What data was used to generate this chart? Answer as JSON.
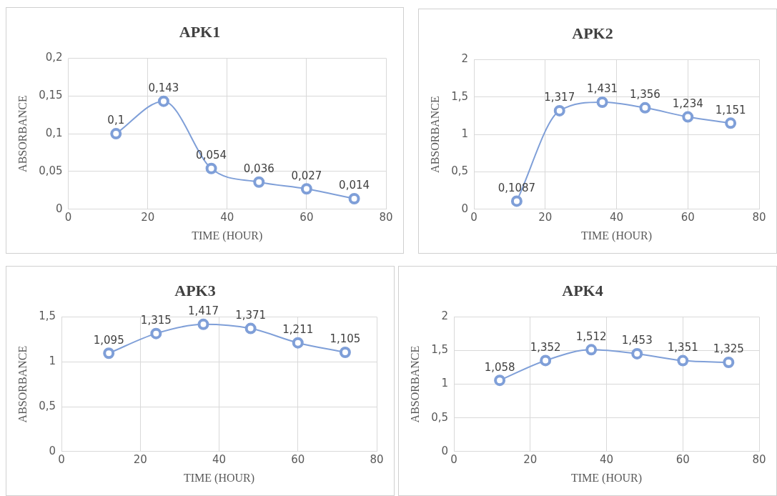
{
  "chart_data": [
    {
      "type": "line",
      "title": "APK1",
      "xlabel": "TIME (HOUR)",
      "ylabel": "ABSORBANCE",
      "x": [
        12,
        24,
        36,
        48,
        60,
        72
      ],
      "series": [
        {
          "color": "#7f9fd8",
          "values": [
            0.1,
            0.143,
            0.054,
            0.036,
            0.027,
            0.014
          ],
          "value_labels": [
            "0,1",
            "0,143",
            "0,054",
            "0,036",
            "0,027",
            "0,014"
          ]
        }
      ],
      "xlim": [
        0,
        80
      ],
      "xticks": [
        0,
        20,
        40,
        60,
        80
      ],
      "ylim": [
        0,
        0.2
      ],
      "yticks": [
        0,
        {
          "value": 0.05,
          "label": "0,05"
        },
        {
          "value": 0.1,
          "label": "0,1"
        },
        {
          "value": 0.15,
          "label": "0,15"
        },
        {
          "value": 0.2,
          "label": "0,2"
        }
      ],
      "grid": true,
      "legend": false,
      "marker": "circle",
      "line_style": "solid"
    },
    {
      "type": "line",
      "title": "APK2",
      "xlabel": "TIME (HOUR)",
      "ylabel": "ABSORBANCE",
      "x": [
        12,
        24,
        36,
        48,
        60,
        72
      ],
      "series": [
        {
          "color": "#7f9fd8",
          "values": [
            0.1087,
            1.317,
            1.431,
            1.356,
            1.234,
            1.151
          ],
          "value_labels": [
            "0,1087",
            "1,317",
            "1,431",
            "1,356",
            "1,234",
            "1,151"
          ]
        }
      ],
      "xlim": [
        0,
        80
      ],
      "xticks": [
        0,
        20,
        40,
        60,
        80
      ],
      "ylim": [
        0,
        2
      ],
      "yticks": [
        0,
        {
          "value": 0.5,
          "label": "0,5"
        },
        1,
        {
          "value": 1.5,
          "label": "1,5"
        },
        2
      ],
      "grid": true,
      "legend": false,
      "marker": "circle",
      "line_style": "solid"
    },
    {
      "type": "line",
      "title": "APK3",
      "xlabel": "TIME (HOUR)",
      "ylabel": "ABSORBANCE",
      "x": [
        12,
        24,
        36,
        48,
        60,
        72
      ],
      "series": [
        {
          "color": "#7f9fd8",
          "values": [
            1.095,
            1.315,
            1.417,
            1.371,
            1.211,
            1.105
          ],
          "value_labels": [
            "1,095",
            "1,315",
            "1,417",
            "1,371",
            "1,211",
            "1,105"
          ]
        }
      ],
      "xlim": [
        0,
        80
      ],
      "xticks": [
        0,
        20,
        40,
        60,
        80
      ],
      "ylim": [
        0,
        1.5
      ],
      "yticks": [
        0,
        {
          "value": 0.5,
          "label": "0,5"
        },
        1,
        {
          "value": 1.5,
          "label": "1,5"
        }
      ],
      "grid": true,
      "legend": false,
      "marker": "circle",
      "line_style": "solid"
    },
    {
      "type": "line",
      "title": "APK4",
      "xlabel": "TIME (HOUR)",
      "ylabel": "ABSORBANCE",
      "x": [
        12,
        24,
        36,
        48,
        60,
        72
      ],
      "series": [
        {
          "color": "#7f9fd8",
          "values": [
            1.058,
            1.352,
            1.512,
            1.453,
            1.351,
            1.325
          ],
          "value_labels": [
            "1,058",
            "1,352",
            "1,512",
            "1,453",
            "1,351",
            "1,325"
          ]
        }
      ],
      "xlim": [
        0,
        80
      ],
      "xticks": [
        0,
        20,
        40,
        60,
        80
      ],
      "ylim": [
        0,
        2
      ],
      "yticks": [
        0,
        {
          "value": 0.5,
          "label": "0,5"
        },
        1,
        {
          "value": 1.5,
          "label": "1,5"
        },
        2
      ],
      "grid": true,
      "legend": false,
      "marker": "circle",
      "line_style": "solid"
    }
  ]
}
